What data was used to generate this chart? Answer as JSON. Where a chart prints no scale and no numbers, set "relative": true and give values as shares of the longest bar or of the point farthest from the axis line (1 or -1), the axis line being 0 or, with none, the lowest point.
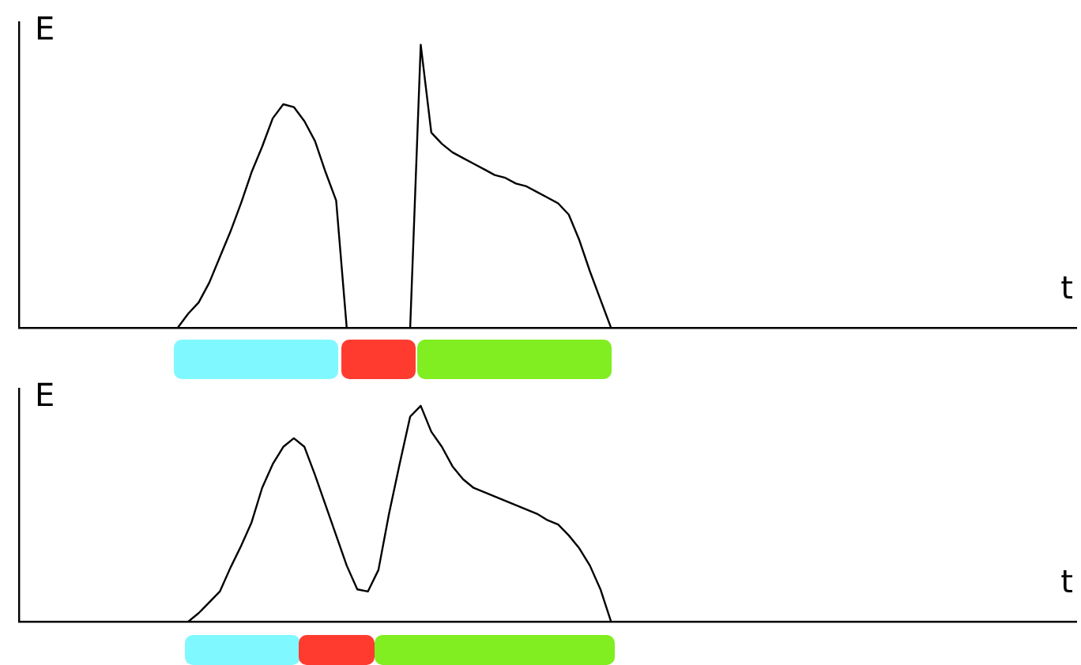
{
  "chart_data": [
    {
      "type": "line",
      "relative": true,
      "xlabel": "t",
      "ylabel": "E",
      "marker": "none",
      "line_style": "solid",
      "categories": [
        null,
        null,
        null,
        null,
        null,
        null,
        null,
        null,
        null,
        null,
        null,
        null,
        null,
        null,
        null,
        null,
        null,
        null,
        null,
        null,
        null,
        null,
        null,
        null,
        null,
        null,
        null,
        null,
        null,
        null,
        null,
        null,
        null,
        null,
        null,
        null,
        null,
        null,
        null,
        null,
        null,
        null,
        null,
        null,
        null,
        null,
        null,
        null,
        null,
        null,
        null,
        null,
        null,
        null,
        null,
        null,
        null,
        null,
        null,
        null,
        null,
        null,
        null,
        null,
        null,
        null,
        null,
        null,
        null,
        null,
        null,
        null,
        null,
        null,
        null,
        null,
        null,
        null,
        null,
        null,
        null,
        null,
        null,
        null,
        null,
        null,
        null,
        null,
        null,
        null,
        null,
        null,
        null,
        null,
        null,
        null,
        null,
        null,
        null,
        null,
        null
      ],
      "series": [
        {
          "color": "#000000",
          "values": [
            null,
            null,
            null,
            null,
            null,
            null,
            null,
            null,
            null,
            null,
            null,
            null,
            null,
            null,
            null,
            0,
            0.05,
            0.09,
            0.16,
            0.25,
            0.34,
            0.44,
            0.55,
            0.64,
            0.74,
            0.79,
            0.78,
            0.73,
            0.66,
            0.55,
            0.45,
            0,
            0,
            0,
            0,
            0,
            0,
            0,
            1,
            0.69,
            0.65,
            0.62,
            0.6,
            0.58,
            0.56,
            0.54,
            0.53,
            0.51,
            0.5,
            0.48,
            0.46,
            0.44,
            0.4,
            0.31,
            0.2,
            0.1,
            0,
            null,
            null,
            null,
            null,
            null,
            null,
            null,
            null,
            null,
            null,
            null,
            null,
            null,
            null,
            null,
            null,
            null,
            null,
            null,
            null,
            null,
            null,
            null,
            null,
            null,
            null,
            null,
            null,
            null,
            null,
            null,
            null,
            null,
            null,
            null,
            null,
            null,
            null,
            null,
            null,
            null,
            null,
            null,
            null
          ]
        }
      ]
    },
    {
      "type": "line",
      "relative": true,
      "xlabel": "t",
      "ylabel": "E",
      "marker": "none",
      "line_style": "solid",
      "categories": [
        null,
        null,
        null,
        null,
        null,
        null,
        null,
        null,
        null,
        null,
        null,
        null,
        null,
        null,
        null,
        null,
        null,
        null,
        null,
        null,
        null,
        null,
        null,
        null,
        null,
        null,
        null,
        null,
        null,
        null,
        null,
        null,
        null,
        null,
        null,
        null,
        null,
        null,
        null,
        null,
        null,
        null,
        null,
        null,
        null,
        null,
        null,
        null,
        null,
        null,
        null,
        null,
        null,
        null,
        null,
        null,
        null,
        null,
        null,
        null,
        null,
        null,
        null,
        null,
        null,
        null,
        null,
        null,
        null,
        null,
        null,
        null,
        null,
        null,
        null,
        null,
        null,
        null,
        null,
        null,
        null,
        null,
        null,
        null,
        null,
        null,
        null,
        null,
        null,
        null,
        null,
        null,
        null,
        null,
        null,
        null,
        null,
        null,
        null,
        null,
        null
      ],
      "series": [
        {
          "color": "#000000",
          "values": [
            null,
            null,
            null,
            null,
            null,
            null,
            null,
            null,
            null,
            null,
            null,
            null,
            null,
            null,
            null,
            null,
            0,
            0.04,
            0.09,
            0.14,
            0.25,
            0.35,
            0.46,
            0.62,
            0.73,
            0.81,
            0.85,
            0.81,
            0.68,
            0.54,
            0.4,
            0.26,
            0.15,
            0.14,
            0.24,
            0.5,
            0.73,
            0.95,
            1,
            0.88,
            0.81,
            0.72,
            0.66,
            0.62,
            0.6,
            0.58,
            0.56,
            0.54,
            0.52,
            0.5,
            0.47,
            0.45,
            0.4,
            0.34,
            0.26,
            0.15,
            0,
            null,
            null,
            null,
            null,
            null,
            null,
            null,
            null,
            null,
            null,
            null,
            null,
            null,
            null,
            null,
            null,
            null,
            null,
            null,
            null,
            null,
            null,
            null,
            null,
            null,
            null,
            null,
            null,
            null,
            null,
            null,
            null,
            null,
            null,
            null,
            null,
            null,
            null,
            null,
            null,
            null,
            null,
            null,
            null
          ]
        }
      ]
    }
  ]
}
